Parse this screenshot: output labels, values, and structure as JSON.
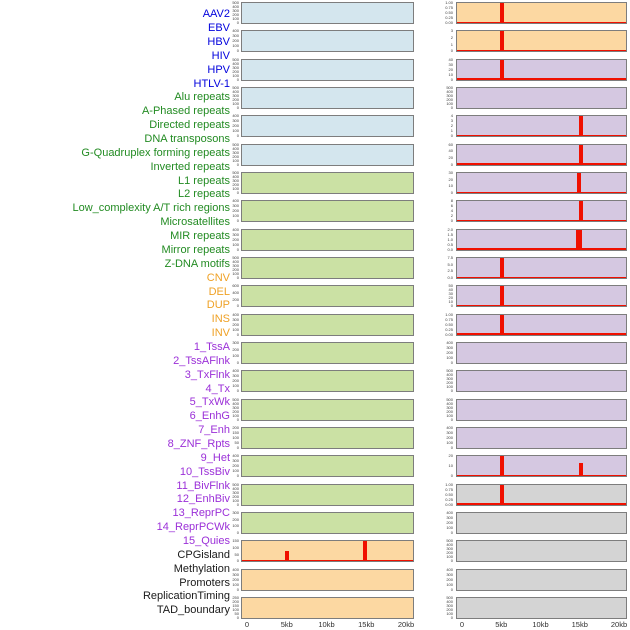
{
  "figure_title": "",
  "chart_data": {
    "type": "bar",
    "layout": "small-multiples",
    "columns": 2,
    "panels_per_column": 22,
    "x_axis": {
      "tick_labels": [
        "0",
        "5kb",
        "10kb",
        "15kb",
        "20kb"
      ],
      "tick_values_kb": [
        0,
        5,
        10,
        15,
        20
      ],
      "range_kb": [
        0,
        20
      ]
    },
    "groups": {
      "virus": {
        "label_color": "#0202dd",
        "fill": "#d4e6ee"
      },
      "repeat": {
        "label_color": "#228b22",
        "fill": "#cbe1a4"
      },
      "sv": {
        "label_color": "#efa125",
        "fill": "#fcd8a2"
      },
      "chromhmm": {
        "label_color": "#9b30d8",
        "fill": "#d5c8e1"
      },
      "other": {
        "label_color": "#1a1a1a",
        "fill": "#d4d4d4"
      }
    },
    "series_color": "#f01000",
    "panels": [
      {
        "name": "AAV2",
        "group": "virus",
        "yticks": [
          "500",
          "400",
          "300",
          "200",
          "100",
          "0"
        ],
        "ymax": 500,
        "spikes": []
      },
      {
        "name": "EBV",
        "group": "virus",
        "yticks": [
          "400",
          "300",
          "200",
          "100",
          "0"
        ],
        "ymax": 400,
        "spikes": []
      },
      {
        "name": "HBV",
        "group": "virus",
        "yticks": [
          "500",
          "400",
          "300",
          "200",
          "100",
          "0"
        ],
        "ymax": 500,
        "spikes": []
      },
      {
        "name": "HIV",
        "group": "virus",
        "yticks": [
          "500",
          "400",
          "300",
          "200",
          "100",
          "0"
        ],
        "ymax": 500,
        "spikes": []
      },
      {
        "name": "HPV",
        "group": "virus",
        "yticks": [
          "400",
          "300",
          "200",
          "100",
          "0"
        ],
        "ymax": 400,
        "spikes": []
      },
      {
        "name": "HTLV-1",
        "group": "virus",
        "yticks": [
          "500",
          "400",
          "300",
          "200",
          "100",
          "0"
        ],
        "ymax": 500,
        "spikes": []
      },
      {
        "name": "Alu repeats",
        "group": "repeat",
        "yticks": [
          "500",
          "400",
          "300",
          "200",
          "100",
          "0"
        ],
        "ymax": 500,
        "spikes": []
      },
      {
        "name": "A-Phased repeats",
        "group": "repeat",
        "yticks": [
          "400",
          "300",
          "200",
          "100",
          "0"
        ],
        "ymax": 400,
        "spikes": []
      },
      {
        "name": "Directed repeats",
        "group": "repeat",
        "yticks": [
          "400",
          "300",
          "200",
          "100",
          "0"
        ],
        "ymax": 400,
        "spikes": []
      },
      {
        "name": "DNA transposons",
        "group": "repeat",
        "yticks": [
          "500",
          "400",
          "300",
          "200",
          "100",
          "0"
        ],
        "ymax": 500,
        "spikes": []
      },
      {
        "name": "G-Quadruplex forming repeats",
        "group": "repeat",
        "yticks": [
          "600",
          "400",
          "200",
          "0"
        ],
        "ymax": 600,
        "spikes": []
      },
      {
        "name": "Inverted repeats",
        "group": "repeat",
        "yticks": [
          "400",
          "300",
          "200",
          "100",
          "0"
        ],
        "ymax": 400,
        "spikes": []
      },
      {
        "name": "L1 repeats",
        "group": "repeat",
        "yticks": [
          "300",
          "200",
          "100",
          "0"
        ],
        "ymax": 300,
        "spikes": []
      },
      {
        "name": "L2 repeats",
        "group": "repeat",
        "yticks": [
          "400",
          "300",
          "200",
          "100",
          "0"
        ],
        "ymax": 400,
        "spikes": []
      },
      {
        "name": "Low_complexity A/T rich regions",
        "group": "repeat",
        "yticks": [
          "500",
          "400",
          "300",
          "200",
          "100",
          "0"
        ],
        "ymax": 500,
        "spikes": []
      },
      {
        "name": "Microsatellites",
        "group": "repeat",
        "yticks": [
          "200",
          "150",
          "100",
          "50",
          "0"
        ],
        "ymax": 200,
        "spikes": []
      },
      {
        "name": "MIR repeats",
        "group": "repeat",
        "yticks": [
          "400",
          "300",
          "200",
          "100",
          "0"
        ],
        "ymax": 400,
        "spikes": []
      },
      {
        "name": "Mirror repeats",
        "group": "repeat",
        "yticks": [
          "500",
          "400",
          "300",
          "200",
          "100",
          "0"
        ],
        "ymax": 500,
        "spikes": []
      },
      {
        "name": "Z-DNA motifs",
        "group": "repeat",
        "yticks": [
          "300",
          "200",
          "100",
          "0"
        ],
        "ymax": 300,
        "spikes": []
      },
      {
        "name": "CNV",
        "group": "sv",
        "yticks": [
          "150",
          "100",
          "50",
          "0"
        ],
        "ymax": 150,
        "spikes": [
          {
            "x_kb": 4.9,
            "value": 80,
            "w": 4
          },
          {
            "x_kb": 14.7,
            "value": 150,
            "w": 4
          }
        ]
      },
      {
        "name": "DEL",
        "group": "sv",
        "yticks": [
          "400",
          "300",
          "200",
          "100",
          "0"
        ],
        "ymax": 400,
        "spikes": []
      },
      {
        "name": "DUP",
        "group": "sv",
        "yticks": [
          "250",
          "200",
          "150",
          "100",
          "50",
          "0"
        ],
        "ymax": 250,
        "spikes": []
      },
      {
        "name": "INS",
        "group": "sv",
        "yticks": [
          "1.00",
          "0.75",
          "0.50",
          "0.25",
          "0.00"
        ],
        "ymax": 1,
        "spikes": [
          {
            "x_kb": 5,
            "value": 1,
            "w": 4
          }
        ]
      },
      {
        "name": "INV",
        "group": "sv",
        "yticks": [
          "3",
          "2",
          "1",
          "0"
        ],
        "ymax": 3,
        "spikes": [
          {
            "x_kb": 5,
            "value": 3,
            "w": 4
          }
        ]
      },
      {
        "name": "1_TssA",
        "group": "chromhmm",
        "yticks": [
          "40",
          "30",
          "20",
          "10",
          "0"
        ],
        "ymax": 40,
        "spikes": [
          {
            "x_kb": 5,
            "value": 40,
            "w": 4
          },
          {
            "x_kb": 14.7,
            "value": 3.5,
            "w": 3
          }
        ]
      },
      {
        "name": "2_TssAFlnk",
        "group": "chromhmm",
        "yticks": [
          "500",
          "400",
          "300",
          "200",
          "100",
          "0"
        ],
        "ymax": 500,
        "spikes": []
      },
      {
        "name": "3_TxFlnk",
        "group": "chromhmm",
        "yticks": [
          "4",
          "3",
          "2",
          "1",
          "0"
        ],
        "ymax": 4,
        "spikes": [
          {
            "x_kb": 15,
            "value": 4,
            "w": 4
          }
        ]
      },
      {
        "name": "4_Tx",
        "group": "chromhmm",
        "yticks": [
          "60",
          "40",
          "20",
          "0"
        ],
        "ymax": 60,
        "spikes": [
          {
            "x_kb": 15,
            "value": 60,
            "w": 4
          }
        ]
      },
      {
        "name": "5_TxWk",
        "group": "chromhmm",
        "yticks": [
          "30",
          "20",
          "10",
          "0"
        ],
        "ymax": 30,
        "spikes": [
          {
            "x_kb": 14.8,
            "value": 30,
            "w": 4
          }
        ]
      },
      {
        "name": "6_EnhG",
        "group": "chromhmm",
        "yticks": [
          "8",
          "6",
          "4",
          "2",
          "0"
        ],
        "ymax": 8,
        "spikes": [
          {
            "x_kb": 15,
            "value": 8,
            "w": 4
          }
        ]
      },
      {
        "name": "7_Enh",
        "group": "chromhmm",
        "yticks": [
          "2.0",
          "1.5",
          "1.0",
          "0.5",
          "0.0"
        ],
        "ymax": 2,
        "spikes": [
          {
            "x_kb": 14.8,
            "value": 2,
            "w": 6
          }
        ]
      },
      {
        "name": "8_ZNF_Rpts",
        "group": "chromhmm",
        "yticks": [
          "7.5",
          "5.0",
          "2.5",
          "0.0"
        ],
        "ymax": 7.5,
        "spikes": [
          {
            "x_kb": 5,
            "value": 7.5,
            "w": 4
          }
        ]
      },
      {
        "name": "9_Het",
        "group": "chromhmm",
        "yticks": [
          "50",
          "40",
          "30",
          "20",
          "10",
          "0"
        ],
        "ymax": 50,
        "spikes": [
          {
            "x_kb": 5,
            "value": 50,
            "w": 4
          }
        ]
      },
      {
        "name": "10_TssBiv",
        "group": "chromhmm",
        "yticks": [
          "1.00",
          "0.75",
          "0.50",
          "0.25",
          "0.00"
        ],
        "ymax": 1,
        "spikes": [
          {
            "x_kb": 5,
            "value": 1,
            "w": 4
          }
        ]
      },
      {
        "name": "11_BivFlnk",
        "group": "chromhmm",
        "yticks": [
          "400",
          "300",
          "200",
          "100",
          "0"
        ],
        "ymax": 400,
        "spikes": []
      },
      {
        "name": "12_EnhBiv",
        "group": "chromhmm",
        "yticks": [
          "500",
          "400",
          "300",
          "200",
          "100",
          "0"
        ],
        "ymax": 500,
        "spikes": []
      },
      {
        "name": "13_ReprPC",
        "group": "chromhmm",
        "yticks": [
          "500",
          "400",
          "300",
          "200",
          "100",
          "0"
        ],
        "ymax": 500,
        "spikes": []
      },
      {
        "name": "14_ReprPCWk",
        "group": "chromhmm",
        "yticks": [
          "400",
          "300",
          "200",
          "100",
          "0"
        ],
        "ymax": 400,
        "spikes": []
      },
      {
        "name": "15_Quies",
        "group": "chromhmm",
        "yticks": [
          "20",
          "10",
          "0"
        ],
        "ymax": 20,
        "spikes": [
          {
            "x_kb": 5,
            "value": 20,
            "w": 4
          },
          {
            "x_kb": 15,
            "value": 13,
            "w": 4
          }
        ]
      },
      {
        "name": "CPGisland",
        "group": "other",
        "yticks": [
          "1.00",
          "0.75",
          "0.50",
          "0.25",
          "0.00"
        ],
        "ymax": 1,
        "spikes": [
          {
            "x_kb": 5,
            "value": 1,
            "w": 4
          }
        ]
      },
      {
        "name": "Methylation",
        "group": "other",
        "yticks": [
          "400",
          "300",
          "200",
          "100",
          "0"
        ],
        "ymax": 400,
        "spikes": []
      },
      {
        "name": "Promoters",
        "group": "other",
        "yticks": [
          "500",
          "400",
          "300",
          "200",
          "100",
          "0"
        ],
        "ymax": 500,
        "spikes": []
      },
      {
        "name": "ReplicationTiming",
        "group": "other",
        "yticks": [
          "400",
          "300",
          "200",
          "100",
          "0"
        ],
        "ymax": 400,
        "spikes": []
      },
      {
        "name": "TAD_boundary",
        "group": "other",
        "yticks": [
          "500",
          "400",
          "300",
          "200",
          "100",
          "0"
        ],
        "ymax": 500,
        "spikes": []
      }
    ]
  }
}
